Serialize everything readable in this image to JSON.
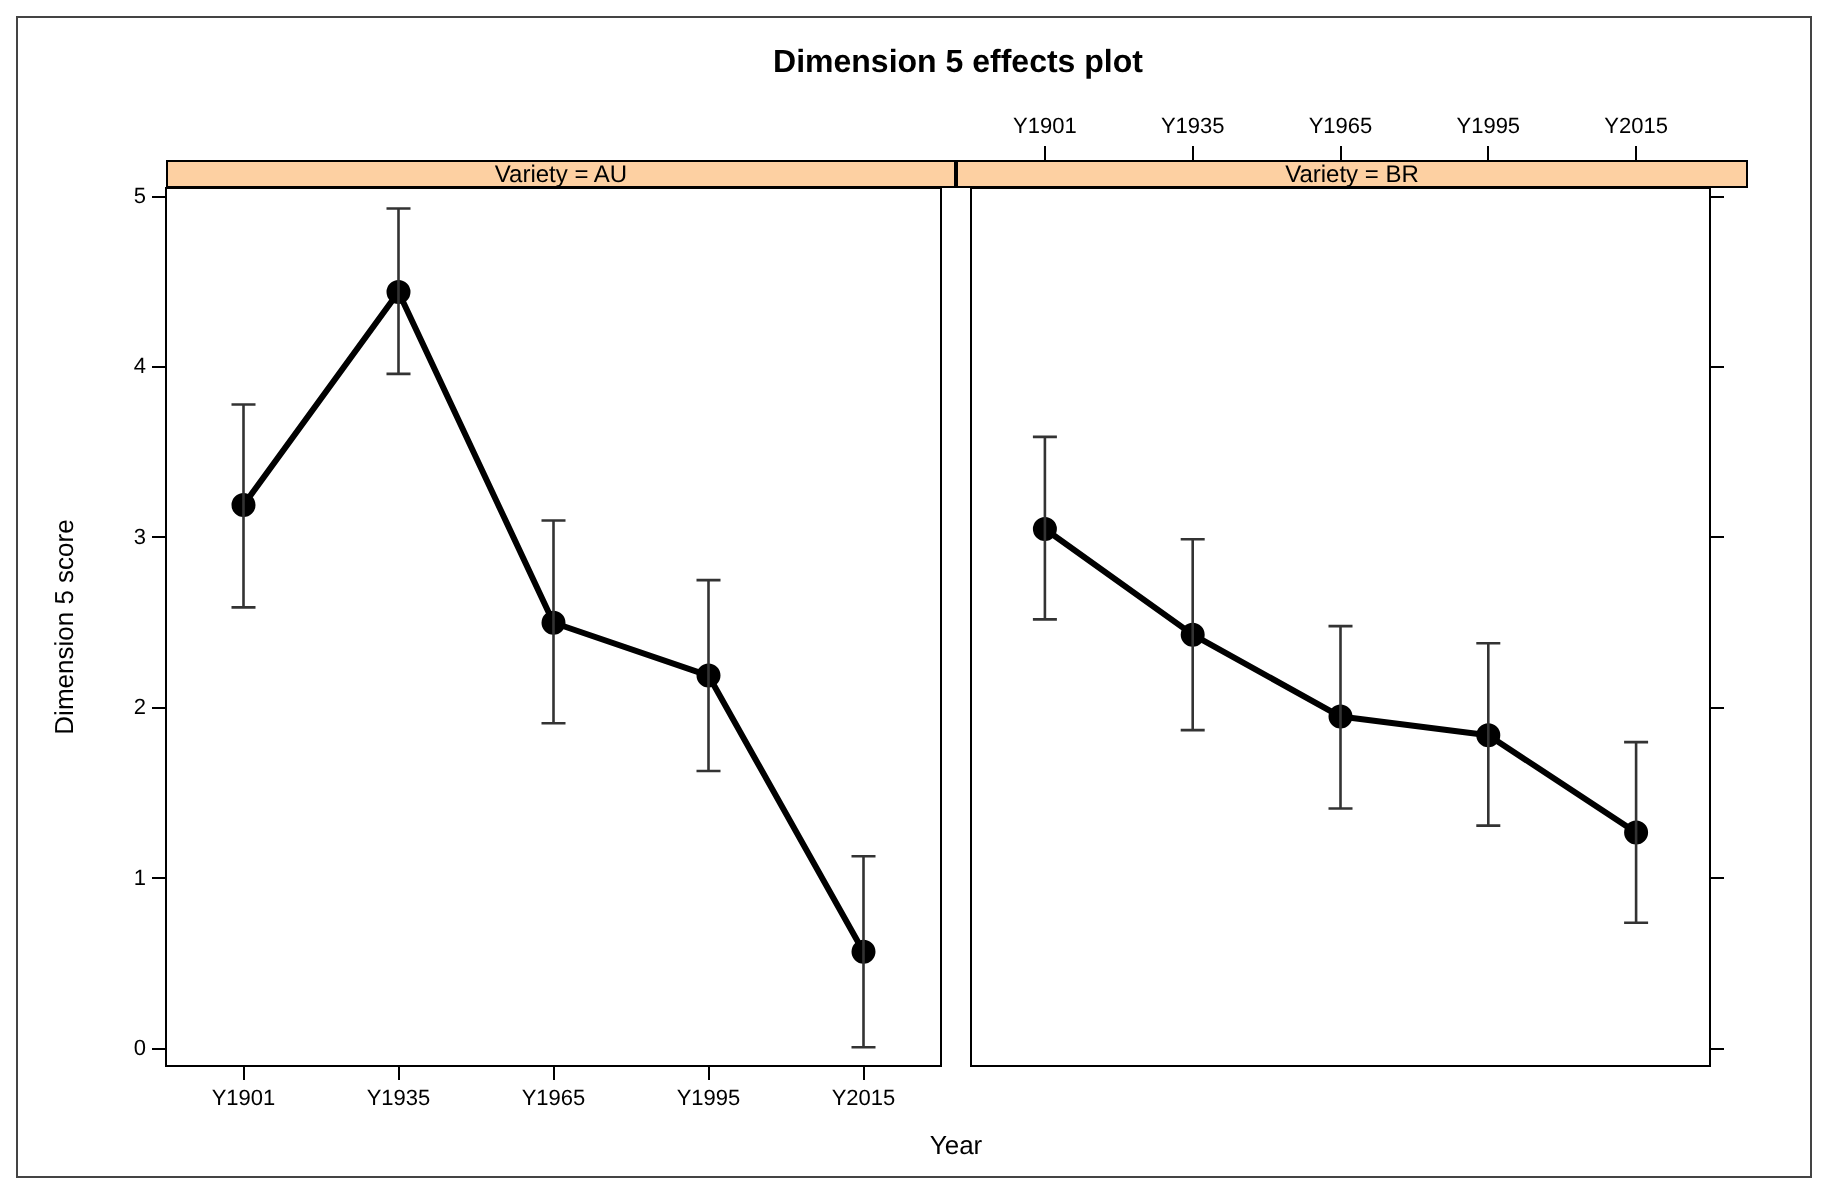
{
  "chart_data": [
    {
      "type": "line",
      "title": "Dimension 5 effects plot",
      "subtitle": "Variety = AU",
      "xlabel": "Year",
      "ylabel": "Dimension 5 score",
      "categories": [
        "Y1901",
        "Y1935",
        "Y1965",
        "Y1995",
        "Y2015"
      ],
      "series": [
        {
          "color": "#000000",
          "values": [
            3.19,
            4.44,
            2.5,
            2.19,
            0.57
          ],
          "errors": [
            [
              2.59,
              3.78
            ],
            [
              3.96,
              4.93
            ],
            [
              1.91,
              3.1
            ],
            [
              1.63,
              2.75
            ],
            [
              0.01,
              1.13
            ]
          ]
        }
      ],
      "ylim": [
        -0.1,
        5.05
      ],
      "yticks": [
        0,
        1,
        2,
        3,
        4,
        5
      ],
      "marker": "circle",
      "line_style": "solid",
      "grid": false,
      "legend": false
    },
    {
      "type": "line",
      "subtitle": "Variety = BR",
      "categories": [
        "Y1901",
        "Y1935",
        "Y1965",
        "Y1995",
        "Y2015"
      ],
      "series": [
        {
          "color": "#000000",
          "values": [
            3.05,
            2.43,
            1.95,
            1.84,
            1.27
          ],
          "errors": [
            [
              2.52,
              3.59
            ],
            [
              1.87,
              2.99
            ],
            [
              1.41,
              2.48
            ],
            [
              1.31,
              2.38
            ],
            [
              0.74,
              1.8
            ]
          ]
        }
      ],
      "ylim": [
        -0.1,
        5.05
      ],
      "yticks": [
        0,
        1,
        2,
        3,
        4,
        5
      ],
      "marker": "circle",
      "line_style": "solid",
      "grid": false,
      "legend": false,
      "tick_labels": "x"
    }
  ]
}
